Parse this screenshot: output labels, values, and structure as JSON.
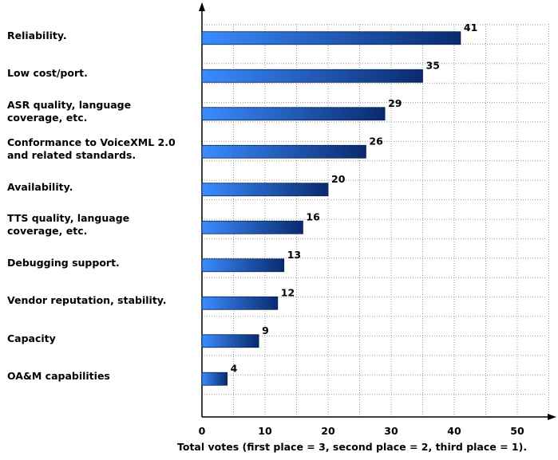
{
  "chart_data": {
    "type": "bar",
    "orientation": "horizontal",
    "categories": [
      "Reliability.",
      "Low cost/port.",
      "ASR quality, language\ncoverage, etc.",
      "Conformance to VoiceXML 2.0\nand related standards.",
      "Availability.",
      "TTS quality, language\ncoverage, etc.",
      "Debugging support.",
      "Vendor reputation, stability.",
      "Capacity",
      "OA&M capabilities"
    ],
    "values": [
      41,
      35,
      29,
      26,
      20,
      16,
      13,
      12,
      9,
      4
    ],
    "xlabel": "Total votes (first place = 3, second place = 2, third place = 1).",
    "xlim": [
      0,
      55
    ],
    "xticks": [
      0,
      10,
      20,
      30,
      40,
      50
    ],
    "grid": true,
    "data_labels": true,
    "colors": {
      "bar_light": "#3a8cff",
      "bar_dark": "#0a2a6e",
      "grid": "#999999",
      "axis": "#000000"
    }
  }
}
